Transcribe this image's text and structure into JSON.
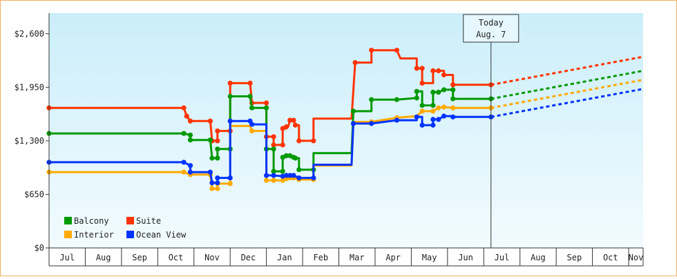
{
  "chart_data": {
    "type": "line",
    "title": "",
    "xlabel": "",
    "ylabel": "",
    "ylim": [
      0,
      2850
    ],
    "yticks": [
      0,
      650,
      1300,
      1950,
      2600
    ],
    "ytick_labels": [
      "$0",
      "$650",
      "$1,300",
      "$1,950",
      "$2,600"
    ],
    "x_months": [
      "Jul",
      "Aug",
      "Sep",
      "Oct",
      "Nov",
      "Dec",
      "Jan",
      "Feb",
      "Mar",
      "Apr",
      "May",
      "Jun",
      "Jul",
      "Aug",
      "Sep",
      "Oct",
      "Nov"
    ],
    "xlim": [
      0,
      16.4
    ],
    "today": {
      "x": 12.2,
      "line1": "Today",
      "line2": "Aug. 7"
    },
    "grid": false,
    "legend_position": "bottom-left",
    "colors": {
      "plot_top": "#cbeefa",
      "plot_bottom": "#f2fbfe",
      "border": "#f0b060"
    },
    "series": [
      {
        "name": "Suite",
        "color": "#ff3300",
        "points": [
          [
            0.0,
            1700
          ],
          [
            3.72,
            1700
          ],
          [
            3.8,
            1600
          ],
          [
            3.9,
            1540
          ],
          [
            4.45,
            1540
          ],
          [
            4.5,
            1300
          ],
          [
            4.65,
            1300
          ],
          [
            4.65,
            1420
          ],
          [
            5.0,
            1420
          ],
          [
            5.0,
            2000
          ],
          [
            5.55,
            2000
          ],
          [
            5.6,
            1760
          ],
          [
            6.0,
            1760
          ],
          [
            6.0,
            1350
          ],
          [
            6.2,
            1350
          ],
          [
            6.2,
            1250
          ],
          [
            6.45,
            1250
          ],
          [
            6.45,
            1450
          ],
          [
            6.55,
            1450
          ],
          [
            6.55,
            1470
          ],
          [
            6.6,
            1470
          ],
          [
            6.65,
            1550
          ],
          [
            6.75,
            1550
          ],
          [
            6.8,
            1490
          ],
          [
            6.9,
            1490
          ],
          [
            6.9,
            1300
          ],
          [
            7.3,
            1300
          ],
          [
            7.3,
            1570
          ],
          [
            8.35,
            1570
          ],
          [
            8.45,
            2250
          ],
          [
            8.9,
            2250
          ],
          [
            8.9,
            2400
          ],
          [
            9.6,
            2400
          ],
          [
            9.7,
            2300
          ],
          [
            10.15,
            2300
          ],
          [
            10.15,
            2180
          ],
          [
            10.3,
            2180
          ],
          [
            10.3,
            2000
          ],
          [
            10.6,
            2000
          ],
          [
            10.6,
            2150
          ],
          [
            10.75,
            2150
          ],
          [
            10.75,
            2150
          ],
          [
            10.9,
            2150
          ],
          [
            10.9,
            2100
          ],
          [
            11.15,
            2100
          ],
          [
            11.15,
            1980
          ],
          [
            12.2,
            1980
          ]
        ],
        "markers": [
          [
            0.0,
            1700
          ],
          [
            3.72,
            1700
          ],
          [
            3.8,
            1600
          ],
          [
            3.9,
            1540
          ],
          [
            4.45,
            1540
          ],
          [
            4.5,
            1300
          ],
          [
            4.65,
            1300
          ],
          [
            4.65,
            1420
          ],
          [
            5.0,
            1420
          ],
          [
            5.0,
            2000
          ],
          [
            5.55,
            2000
          ],
          [
            5.6,
            1760
          ],
          [
            6.0,
            1760
          ],
          [
            6.0,
            1350
          ],
          [
            6.2,
            1350
          ],
          [
            6.2,
            1250
          ],
          [
            6.45,
            1250
          ],
          [
            6.45,
            1450
          ],
          [
            6.55,
            1470
          ],
          [
            6.65,
            1550
          ],
          [
            6.75,
            1550
          ],
          [
            6.8,
            1490
          ],
          [
            6.9,
            1300
          ],
          [
            7.3,
            1300
          ],
          [
            8.45,
            2250
          ],
          [
            8.9,
            2400
          ],
          [
            9.6,
            2400
          ],
          [
            10.15,
            2180
          ],
          [
            10.3,
            2180
          ],
          [
            10.3,
            2000
          ],
          [
            10.6,
            2150
          ],
          [
            10.75,
            2150
          ],
          [
            10.9,
            2100
          ],
          [
            11.15,
            1980
          ],
          [
            12.2,
            1980
          ]
        ],
        "projection": [
          [
            12.2,
            1980
          ],
          [
            16.4,
            2320
          ]
        ]
      },
      {
        "name": "Balcony",
        "color": "#009900",
        "points": [
          [
            0.0,
            1390
          ],
          [
            3.72,
            1390
          ],
          [
            3.9,
            1370
          ],
          [
            3.9,
            1310
          ],
          [
            4.45,
            1310
          ],
          [
            4.5,
            1090
          ],
          [
            4.65,
            1090
          ],
          [
            4.65,
            1200
          ],
          [
            5.0,
            1200
          ],
          [
            5.0,
            1840
          ],
          [
            5.55,
            1840
          ],
          [
            5.6,
            1700
          ],
          [
            6.0,
            1700
          ],
          [
            6.0,
            1200
          ],
          [
            6.2,
            1200
          ],
          [
            6.2,
            930
          ],
          [
            6.45,
            930
          ],
          [
            6.45,
            1100
          ],
          [
            6.55,
            1100
          ],
          [
            6.55,
            1120
          ],
          [
            6.65,
            1120
          ],
          [
            6.65,
            1100
          ],
          [
            6.75,
            1100
          ],
          [
            6.8,
            1090
          ],
          [
            6.9,
            1090
          ],
          [
            6.9,
            950
          ],
          [
            7.3,
            950
          ],
          [
            7.3,
            1150
          ],
          [
            8.35,
            1150
          ],
          [
            8.4,
            1660
          ],
          [
            8.9,
            1660
          ],
          [
            8.9,
            1800
          ],
          [
            9.6,
            1800
          ],
          [
            10.15,
            1820
          ],
          [
            10.15,
            1900
          ],
          [
            10.3,
            1900
          ],
          [
            10.3,
            1730
          ],
          [
            10.6,
            1730
          ],
          [
            10.6,
            1890
          ],
          [
            10.75,
            1890
          ],
          [
            10.9,
            1920
          ],
          [
            11.15,
            1920
          ],
          [
            11.15,
            1810
          ],
          [
            12.2,
            1810
          ]
        ],
        "markers": [
          [
            0.0,
            1390
          ],
          [
            3.72,
            1390
          ],
          [
            3.9,
            1370
          ],
          [
            3.9,
            1310
          ],
          [
            4.45,
            1310
          ],
          [
            4.5,
            1090
          ],
          [
            4.65,
            1090
          ],
          [
            4.65,
            1200
          ],
          [
            5.0,
            1200
          ],
          [
            5.0,
            1840
          ],
          [
            5.55,
            1840
          ],
          [
            5.6,
            1700
          ],
          [
            6.0,
            1700
          ],
          [
            6.0,
            1200
          ],
          [
            6.2,
            1200
          ],
          [
            6.2,
            930
          ],
          [
            6.45,
            930
          ],
          [
            6.45,
            1100
          ],
          [
            6.55,
            1120
          ],
          [
            6.65,
            1120
          ],
          [
            6.75,
            1100
          ],
          [
            6.8,
            1090
          ],
          [
            6.9,
            950
          ],
          [
            7.3,
            950
          ],
          [
            8.4,
            1660
          ],
          [
            8.9,
            1800
          ],
          [
            9.6,
            1800
          ],
          [
            10.15,
            1820
          ],
          [
            10.15,
            1900
          ],
          [
            10.3,
            1730
          ],
          [
            10.6,
            1730
          ],
          [
            10.6,
            1890
          ],
          [
            10.75,
            1890
          ],
          [
            10.9,
            1920
          ],
          [
            11.15,
            1920
          ],
          [
            11.15,
            1810
          ],
          [
            12.2,
            1810
          ]
        ],
        "projection": [
          [
            12.2,
            1810
          ],
          [
            16.4,
            2150
          ]
        ]
      },
      {
        "name": "Interior",
        "color": "#ffaa00",
        "points": [
          [
            0.0,
            920
          ],
          [
            3.72,
            920
          ],
          [
            3.9,
            890
          ],
          [
            4.45,
            890
          ],
          [
            4.5,
            720
          ],
          [
            4.65,
            720
          ],
          [
            4.65,
            780
          ],
          [
            5.0,
            780
          ],
          [
            5.0,
            1480
          ],
          [
            5.55,
            1480
          ],
          [
            5.6,
            1420
          ],
          [
            6.0,
            1420
          ],
          [
            6.0,
            820
          ],
          [
            6.2,
            820
          ],
          [
            6.45,
            820
          ],
          [
            6.45,
            840
          ],
          [
            6.55,
            840
          ],
          [
            6.65,
            850
          ],
          [
            6.75,
            850
          ],
          [
            6.9,
            830
          ],
          [
            7.3,
            830
          ],
          [
            7.3,
            1000
          ],
          [
            8.35,
            1000
          ],
          [
            8.4,
            1530
          ],
          [
            8.9,
            1530
          ],
          [
            9.6,
            1580
          ],
          [
            10.15,
            1600
          ],
          [
            10.3,
            1660
          ],
          [
            10.6,
            1660
          ],
          [
            10.75,
            1700
          ],
          [
            10.9,
            1710
          ],
          [
            11.15,
            1700
          ],
          [
            12.2,
            1700
          ]
        ],
        "markers": [
          [
            0.0,
            920
          ],
          [
            3.72,
            920
          ],
          [
            3.9,
            890
          ],
          [
            4.45,
            890
          ],
          [
            4.5,
            720
          ],
          [
            4.65,
            720
          ],
          [
            4.65,
            780
          ],
          [
            5.0,
            780
          ],
          [
            5.6,
            1420
          ],
          [
            6.0,
            820
          ],
          [
            6.2,
            820
          ],
          [
            6.45,
            820
          ],
          [
            6.55,
            840
          ],
          [
            6.65,
            850
          ],
          [
            6.75,
            850
          ],
          [
            6.9,
            830
          ],
          [
            7.3,
            830
          ],
          [
            8.9,
            1530
          ],
          [
            9.6,
            1580
          ],
          [
            10.3,
            1660
          ],
          [
            10.6,
            1660
          ],
          [
            10.75,
            1700
          ],
          [
            10.9,
            1710
          ],
          [
            11.15,
            1700
          ],
          [
            12.2,
            1700
          ]
        ],
        "projection": [
          [
            12.2,
            1700
          ],
          [
            16.4,
            2040
          ]
        ]
      },
      {
        "name": "Ocean View",
        "color": "#0033ff",
        "points": [
          [
            0.0,
            1040
          ],
          [
            3.72,
            1040
          ],
          [
            3.9,
            1000
          ],
          [
            3.9,
            920
          ],
          [
            4.45,
            920
          ],
          [
            4.5,
            790
          ],
          [
            4.65,
            790
          ],
          [
            4.65,
            850
          ],
          [
            5.0,
            850
          ],
          [
            5.0,
            1540
          ],
          [
            5.55,
            1540
          ],
          [
            5.6,
            1500
          ],
          [
            6.0,
            1500
          ],
          [
            6.0,
            880
          ],
          [
            6.2,
            880
          ],
          [
            6.45,
            870
          ],
          [
            6.55,
            880
          ],
          [
            6.65,
            880
          ],
          [
            6.75,
            880
          ],
          [
            6.9,
            850
          ],
          [
            7.3,
            850
          ],
          [
            7.3,
            1010
          ],
          [
            8.35,
            1010
          ],
          [
            8.4,
            1510
          ],
          [
            8.9,
            1510
          ],
          [
            9.6,
            1550
          ],
          [
            10.15,
            1550
          ],
          [
            10.15,
            1590
          ],
          [
            10.3,
            1590
          ],
          [
            10.3,
            1490
          ],
          [
            10.6,
            1490
          ],
          [
            10.6,
            1560
          ],
          [
            10.75,
            1560
          ],
          [
            10.9,
            1600
          ],
          [
            11.15,
            1600
          ],
          [
            11.15,
            1590
          ],
          [
            12.2,
            1590
          ]
        ],
        "markers": [
          [
            0.0,
            1040
          ],
          [
            3.72,
            1040
          ],
          [
            3.9,
            1000
          ],
          [
            3.9,
            920
          ],
          [
            4.45,
            920
          ],
          [
            4.5,
            790
          ],
          [
            4.65,
            790
          ],
          [
            4.65,
            850
          ],
          [
            5.0,
            850
          ],
          [
            5.0,
            1540
          ],
          [
            5.55,
            1540
          ],
          [
            5.6,
            1500
          ],
          [
            6.0,
            880
          ],
          [
            6.2,
            880
          ],
          [
            6.45,
            870
          ],
          [
            6.55,
            880
          ],
          [
            6.65,
            880
          ],
          [
            6.75,
            880
          ],
          [
            6.9,
            850
          ],
          [
            7.3,
            850
          ],
          [
            8.4,
            1510
          ],
          [
            8.9,
            1510
          ],
          [
            9.6,
            1550
          ],
          [
            10.15,
            1590
          ],
          [
            10.3,
            1490
          ],
          [
            10.6,
            1490
          ],
          [
            10.6,
            1560
          ],
          [
            10.75,
            1560
          ],
          [
            10.9,
            1600
          ],
          [
            11.15,
            1590
          ],
          [
            12.2,
            1590
          ]
        ],
        "projection": [
          [
            12.2,
            1590
          ],
          [
            16.4,
            1930
          ]
        ]
      }
    ],
    "legend": [
      {
        "name": "Balcony",
        "color": "#009900",
        "col": 0,
        "row": 0
      },
      {
        "name": "Suite",
        "color": "#ff3300",
        "col": 1,
        "row": 0
      },
      {
        "name": "Interior",
        "color": "#ffaa00",
        "col": 0,
        "row": 1
      },
      {
        "name": "Ocean View",
        "color": "#0033ff",
        "col": 1,
        "row": 1
      }
    ]
  }
}
